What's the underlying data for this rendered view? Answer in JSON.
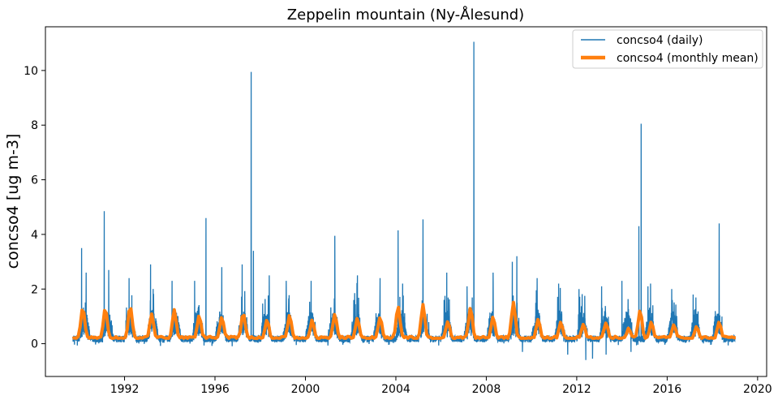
{
  "chart_data": {
    "type": "line",
    "title": "Zeppelin mountain (Ny-Ålesund)",
    "xlabel": "",
    "ylabel": "concso4 [ug m-3]",
    "xlim": [
      1988.5,
      2020.4
    ],
    "ylim": [
      -1.2,
      11.6
    ],
    "xticks": [
      1992,
      1996,
      2000,
      2004,
      2008,
      2012,
      2016,
      2020
    ],
    "xtick_labels": [
      "1992",
      "1996",
      "2000",
      "2004",
      "2008",
      "2012",
      "2016",
      "2020"
    ],
    "yticks": [
      0,
      2,
      4,
      6,
      8,
      10
    ],
    "ytick_labels": [
      "0",
      "2",
      "4",
      "6",
      "8",
      "10"
    ],
    "grid": false,
    "legend_position": "top-right",
    "series": [
      {
        "name": "concso4 (daily)",
        "color": "#1f77b4",
        "style": "thin-line",
        "x_range": [
          1989.7,
          2019.0
        ],
        "points_per_year": 180,
        "baseline_level": 0.25,
        "spikes": [
          {
            "x": 1990.1,
            "y": 3.5
          },
          {
            "x": 1990.3,
            "y": 2.6
          },
          {
            "x": 1991.1,
            "y": 4.85
          },
          {
            "x": 1991.3,
            "y": 2.7
          },
          {
            "x": 1992.2,
            "y": 2.4
          },
          {
            "x": 1993.15,
            "y": 2.9
          },
          {
            "x": 1994.1,
            "y": 2.3
          },
          {
            "x": 1995.1,
            "y": 2.3
          },
          {
            "x": 1995.6,
            "y": 4.6
          },
          {
            "x": 1996.3,
            "y": 2.8
          },
          {
            "x": 1997.2,
            "y": 2.9
          },
          {
            "x": 1997.6,
            "y": 9.95
          },
          {
            "x": 1997.7,
            "y": 3.4
          },
          {
            "x": 1998.4,
            "y": 2.5
          },
          {
            "x": 1999.15,
            "y": 2.3
          },
          {
            "x": 2000.25,
            "y": 2.3
          },
          {
            "x": 2001.3,
            "y": 3.95
          },
          {
            "x": 2002.3,
            "y": 2.5
          },
          {
            "x": 2003.3,
            "y": 2.4
          },
          {
            "x": 2004.1,
            "y": 4.15
          },
          {
            "x": 2004.3,
            "y": 2.2
          },
          {
            "x": 2005.2,
            "y": 4.55
          },
          {
            "x": 2006.25,
            "y": 2.6
          },
          {
            "x": 2007.15,
            "y": 2.1
          },
          {
            "x": 2007.45,
            "y": 11.05
          },
          {
            "x": 2008.3,
            "y": 2.6
          },
          {
            "x": 2009.15,
            "y": 3.0
          },
          {
            "x": 2009.35,
            "y": 3.2
          },
          {
            "x": 2010.25,
            "y": 2.4
          },
          {
            "x": 2011.2,
            "y": 2.2
          },
          {
            "x": 2012.1,
            "y": 2.0
          },
          {
            "x": 2013.1,
            "y": 2.1
          },
          {
            "x": 2014.0,
            "y": 2.3
          },
          {
            "x": 2014.75,
            "y": 4.3
          },
          {
            "x": 2014.85,
            "y": 8.05
          },
          {
            "x": 2015.15,
            "y": 2.1
          },
          {
            "x": 2016.2,
            "y": 2.0
          },
          {
            "x": 2017.15,
            "y": 1.8
          },
          {
            "x": 2018.3,
            "y": 4.4
          }
        ],
        "dips": [
          {
            "x": 2011.6,
            "y": -0.4
          },
          {
            "x": 2012.4,
            "y": -0.6
          },
          {
            "x": 2012.7,
            "y": -0.55
          },
          {
            "x": 2013.3,
            "y": -0.4
          },
          {
            "x": 2009.6,
            "y": -0.3
          },
          {
            "x": 2014.4,
            "y": -0.3
          }
        ]
      },
      {
        "name": "concso4 (monthly mean)",
        "color": "#ff7f0e",
        "style": "thick-line",
        "x_range": [
          1989.7,
          2019.0
        ],
        "annual_peaks": [
          {
            "x": 1990.15,
            "y": 1.3
          },
          {
            "x": 1991.15,
            "y": 1.25
          },
          {
            "x": 1992.25,
            "y": 1.35
          },
          {
            "x": 1993.2,
            "y": 1.05
          },
          {
            "x": 1994.2,
            "y": 1.2
          },
          {
            "x": 1995.3,
            "y": 1.0
          },
          {
            "x": 1996.3,
            "y": 0.95
          },
          {
            "x": 1997.25,
            "y": 1.1
          },
          {
            "x": 1998.3,
            "y": 0.85
          },
          {
            "x": 1999.3,
            "y": 1.0
          },
          {
            "x": 2000.3,
            "y": 0.85
          },
          {
            "x": 2001.3,
            "y": 1.05
          },
          {
            "x": 2002.3,
            "y": 0.9
          },
          {
            "x": 2003.3,
            "y": 0.95
          },
          {
            "x": 2004.1,
            "y": 1.35
          },
          {
            "x": 2005.2,
            "y": 1.4
          },
          {
            "x": 2006.3,
            "y": 0.8
          },
          {
            "x": 2007.3,
            "y": 1.3
          },
          {
            "x": 2008.3,
            "y": 0.95
          },
          {
            "x": 2009.2,
            "y": 1.5
          },
          {
            "x": 2010.3,
            "y": 0.85
          },
          {
            "x": 2011.3,
            "y": 0.75
          },
          {
            "x": 2012.3,
            "y": 0.7
          },
          {
            "x": 2013.3,
            "y": 0.75
          },
          {
            "x": 2014.3,
            "y": 0.55
          },
          {
            "x": 2014.8,
            "y": 1.2
          },
          {
            "x": 2015.3,
            "y": 0.75
          },
          {
            "x": 2016.3,
            "y": 0.65
          },
          {
            "x": 2017.3,
            "y": 0.6
          },
          {
            "x": 2018.3,
            "y": 0.75
          }
        ],
        "baseline_level": 0.15
      }
    ]
  }
}
